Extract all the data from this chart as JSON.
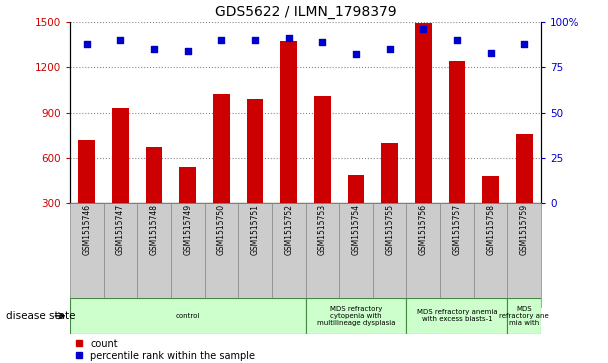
{
  "title": "GDS5622 / ILMN_1798379",
  "samples": [
    "GSM1515746",
    "GSM1515747",
    "GSM1515748",
    "GSM1515749",
    "GSM1515750",
    "GSM1515751",
    "GSM1515752",
    "GSM1515753",
    "GSM1515754",
    "GSM1515755",
    "GSM1515756",
    "GSM1515757",
    "GSM1515758",
    "GSM1515759"
  ],
  "counts": [
    720,
    930,
    670,
    540,
    1020,
    990,
    1370,
    1010,
    490,
    700,
    1490,
    1240,
    480,
    760
  ],
  "percentiles": [
    88,
    90,
    85,
    84,
    90,
    90,
    91,
    89,
    82,
    85,
    96,
    90,
    83,
    88
  ],
  "ylim_left": [
    300,
    1500
  ],
  "ylim_right": [
    0,
    100
  ],
  "yticks_left": [
    300,
    600,
    900,
    1200,
    1500
  ],
  "yticks_right": [
    0,
    25,
    50,
    75,
    100
  ],
  "bar_color": "#cc0000",
  "dot_color": "#0000cc",
  "grid_color": "#888888",
  "group_boundaries": [
    0,
    7,
    10,
    13,
    14
  ],
  "group_labels": [
    "control",
    "MDS refractory\ncytopenia with\nmultilineage dysplasia",
    "MDS refractory anemia\nwith excess blasts-1",
    "MDS\nrefractory ane\nmia with"
  ],
  "disease_state_label": "disease state",
  "legend_count_label": "count",
  "legend_pct_label": "percentile rank within the sample",
  "bar_width": 0.5,
  "right_axis_label_color": "#0000cc",
  "left_axis_label_color": "#cc0000",
  "group_fill_color": "#ccffcc",
  "group_border_color": "#448844",
  "tick_label_bg": "#cccccc",
  "tick_label_border": "#888888"
}
